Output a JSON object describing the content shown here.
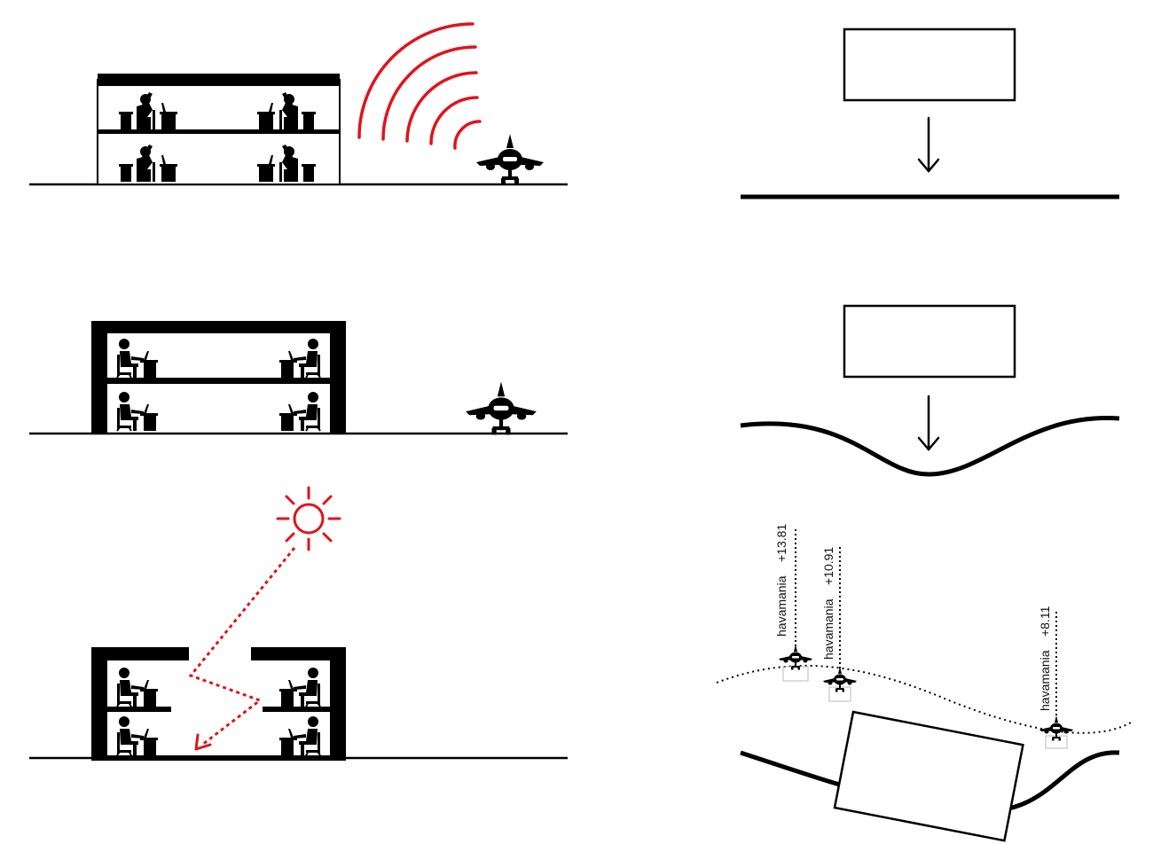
{
  "colors": {
    "ink": "#000000",
    "accent_red": "#e0141c",
    "paper": "#ffffff"
  },
  "icons": {
    "noise": "sound-wave-icon",
    "airplane": "airplane-icon",
    "sun": "sun-icon",
    "worker": "office-worker-icon",
    "arrow": "arrow-down-icon"
  },
  "flight_heights": [
    {
      "label": "havamania",
      "value": "+13.81"
    },
    {
      "label": "havamania",
      "value": "+10.91"
    },
    {
      "label": "havamania",
      "value": "+8.11"
    }
  ]
}
